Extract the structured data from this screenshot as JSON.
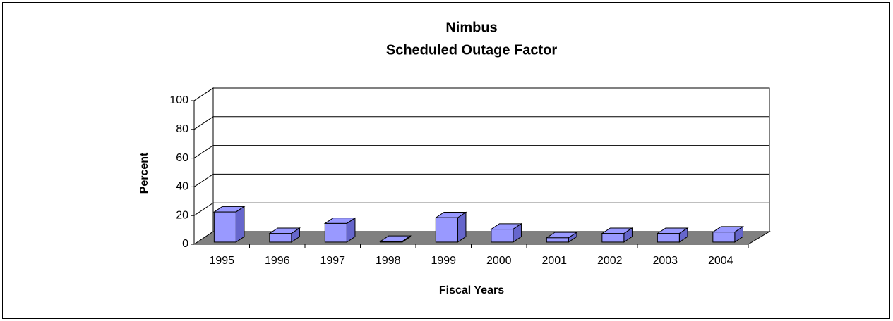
{
  "chart_data": {
    "type": "bar3d",
    "title": "Nimbus",
    "subtitle": "Scheduled Outage Factor",
    "x_label": "Fiscal Years",
    "y_label": "Percent",
    "categories": [
      "1995",
      "1996",
      "1997",
      "1998",
      "1999",
      "2000",
      "2001",
      "2002",
      "2003",
      "2004"
    ],
    "values": [
      21,
      6,
      13,
      0.5,
      17,
      9,
      3,
      6,
      6,
      7
    ],
    "color": "#9999ff",
    "ylim": [
      0,
      100
    ],
    "yticks": [
      0,
      20,
      40,
      60,
      80,
      100
    ],
    "grid": true
  }
}
